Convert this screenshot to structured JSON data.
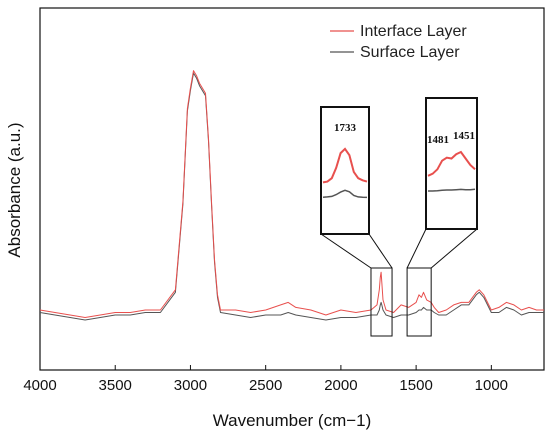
{
  "chart_data": {
    "type": "line",
    "title": "",
    "xlabel": "Wavenumber (cm−1)",
    "ylabel": "Absorbance (a.u.)",
    "xlim": [
      4000,
      650
    ],
    "x_reversed": true,
    "y_ticks_shown": false,
    "grid": false,
    "legend_position": "top-right",
    "x_ticks": [
      "4000",
      "3500",
      "3000",
      "2500",
      "2000",
      "1500",
      "1000"
    ],
    "x_tick_values": [
      4000,
      3500,
      3000,
      2500,
      2000,
      1500,
      1000
    ],
    "series": [
      {
        "name": "Interface Layer",
        "color": "#e8504e",
        "x": [
          4000,
          3900,
          3800,
          3700,
          3600,
          3500,
          3400,
          3300,
          3200,
          3100,
          3050,
          3020,
          3000,
          2980,
          2960,
          2940,
          2920,
          2900,
          2880,
          2860,
          2840,
          2820,
          2800,
          2700,
          2600,
          2500,
          2400,
          2350,
          2300,
          2200,
          2100,
          2000,
          1900,
          1800,
          1760,
          1745,
          1738,
          1733,
          1728,
          1720,
          1700,
          1650,
          1600,
          1550,
          1500,
          1481,
          1465,
          1451,
          1430,
          1400,
          1380,
          1350,
          1300,
          1250,
          1200,
          1150,
          1100,
          1080,
          1050,
          1000,
          950,
          900,
          850,
          800,
          750,
          700,
          650
        ],
        "y": [
          0.02,
          0.01,
          0.0,
          -0.01,
          0.0,
          0.01,
          0.01,
          0.02,
          0.02,
          0.1,
          0.45,
          0.82,
          0.9,
          0.97,
          0.95,
          0.92,
          0.9,
          0.88,
          0.7,
          0.45,
          0.22,
          0.08,
          0.02,
          0.02,
          0.01,
          0.02,
          0.04,
          0.05,
          0.03,
          0.02,
          0.0,
          0.02,
          0.01,
          0.02,
          0.04,
          0.1,
          0.15,
          0.17,
          0.13,
          0.06,
          0.02,
          0.01,
          0.04,
          0.03,
          0.05,
          0.08,
          0.07,
          0.09,
          0.06,
          0.05,
          0.03,
          0.01,
          0.02,
          0.04,
          0.05,
          0.05,
          0.09,
          0.1,
          0.08,
          0.02,
          0.03,
          0.05,
          0.04,
          0.02,
          0.03,
          0.02,
          0.02
        ]
      },
      {
        "name": "Surface Layer",
        "color": "#555555",
        "x": [
          4000,
          3900,
          3800,
          3700,
          3600,
          3500,
          3400,
          3300,
          3200,
          3100,
          3050,
          3020,
          3000,
          2980,
          2960,
          2940,
          2920,
          2900,
          2880,
          2860,
          2840,
          2820,
          2800,
          2700,
          2600,
          2500,
          2400,
          2350,
          2300,
          2200,
          2100,
          2000,
          1900,
          1800,
          1760,
          1745,
          1738,
          1733,
          1728,
          1720,
          1700,
          1650,
          1600,
          1550,
          1500,
          1481,
          1465,
          1451,
          1430,
          1400,
          1380,
          1350,
          1300,
          1250,
          1200,
          1150,
          1100,
          1080,
          1050,
          1000,
          950,
          900,
          850,
          800,
          750,
          700,
          650
        ],
        "y": [
          0.01,
          0.0,
          -0.01,
          -0.02,
          -0.01,
          0.0,
          0.0,
          0.01,
          0.01,
          0.09,
          0.44,
          0.81,
          0.89,
          0.96,
          0.94,
          0.91,
          0.89,
          0.87,
          0.69,
          0.44,
          0.21,
          0.07,
          0.01,
          0.0,
          -0.01,
          0.0,
          0.0,
          0.01,
          0.0,
          -0.01,
          -0.02,
          -0.01,
          -0.01,
          0.0,
          0.0,
          0.02,
          0.04,
          0.05,
          0.04,
          0.02,
          0.0,
          -0.01,
          0.0,
          0.0,
          0.01,
          0.02,
          0.02,
          0.03,
          0.02,
          0.02,
          0.01,
          0.0,
          0.0,
          0.02,
          0.04,
          0.04,
          0.08,
          0.09,
          0.07,
          0.01,
          0.01,
          0.03,
          0.02,
          0.0,
          0.01,
          0.01,
          0.01
        ]
      }
    ],
    "insets": [
      {
        "label": "1733",
        "x_range": [
          1800,
          1660
        ],
        "peaks": [
          1733
        ],
        "interface": [
          0.2,
          0.22,
          0.3,
          0.55,
          0.9,
          1.0,
          0.85,
          0.45,
          0.3,
          0.25,
          0.22
        ],
        "surface": [
          0.05,
          0.06,
          0.08,
          0.15,
          0.25,
          0.32,
          0.26,
          0.12,
          0.06,
          0.05,
          0.04
        ]
      },
      {
        "labels": [
          "1481",
          "1451"
        ],
        "x_range": [
          1560,
          1400
        ],
        "peaks": [
          1481,
          1451
        ],
        "interface": [
          0.2,
          0.25,
          0.35,
          0.55,
          0.62,
          0.6,
          0.7,
          0.75,
          0.6,
          0.45,
          0.35
        ],
        "surface": [
          0.05,
          0.05,
          0.06,
          0.08,
          0.09,
          0.09,
          0.1,
          0.11,
          0.1,
          0.1,
          0.12
        ]
      }
    ]
  }
}
